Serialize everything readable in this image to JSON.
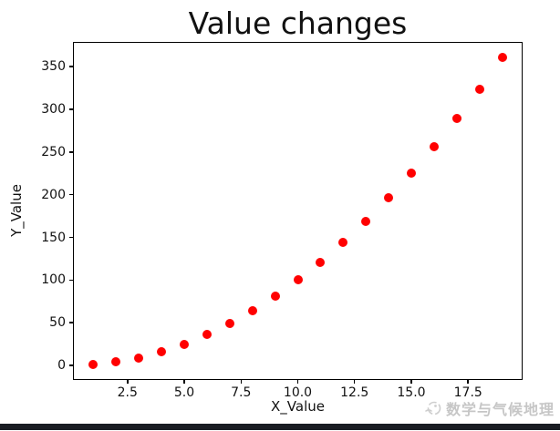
{
  "chart_data": {
    "type": "scatter",
    "title": "Value changes",
    "xlabel": "X_Value",
    "ylabel": "Y_Value",
    "x": [
      1,
      2,
      3,
      4,
      5,
      6,
      7,
      8,
      9,
      10,
      11,
      12,
      13,
      14,
      15,
      16,
      17,
      18,
      19
    ],
    "y": [
      1,
      4,
      9,
      16,
      25,
      36,
      49,
      64,
      81,
      100,
      121,
      144,
      169,
      196,
      225,
      256,
      289,
      324,
      361
    ],
    "xlim": [
      0.1,
      19.9
    ],
    "ylim": [
      -17,
      379
    ],
    "x_ticks": [
      2.5,
      5.0,
      7.5,
      10.0,
      12.5,
      15.0,
      17.5
    ],
    "x_tick_labels": [
      "2.5",
      "5.0",
      "7.5",
      "10.0",
      "12.5",
      "15.0",
      "17.5"
    ],
    "y_ticks": [
      0,
      50,
      100,
      150,
      200,
      250,
      300,
      350
    ],
    "y_tick_labels": [
      "0",
      "50",
      "100",
      "150",
      "200",
      "250",
      "300",
      "350"
    ],
    "marker_color": "#ff0000",
    "grid": false,
    "legend": null
  },
  "watermark": {
    "text": "数学与气候地理",
    "icon": "logo-icon",
    "color": "#bdbdbd"
  },
  "bottom_bar_color": "#1a1d23"
}
